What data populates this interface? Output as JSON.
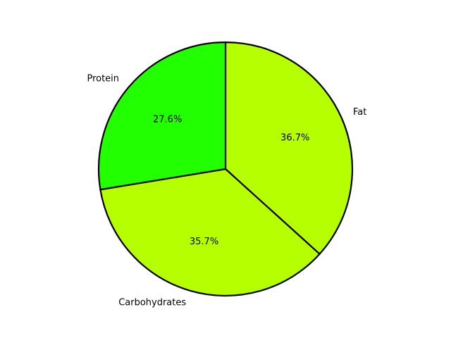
{
  "chart_data": {
    "type": "pie",
    "categories": [
      "Fat",
      "Carbohydrates",
      "Protein"
    ],
    "values": [
      36.7,
      35.7,
      27.6
    ],
    "value_labels": [
      "36.7%",
      "35.7%",
      "27.6%"
    ],
    "colors": [
      "#b6ff00",
      "#b6ff00",
      "#22ff00"
    ],
    "edge_color": "#000000",
    "start_angle_deg": 90,
    "direction": "clockwise",
    "title": "",
    "legend": "none"
  }
}
